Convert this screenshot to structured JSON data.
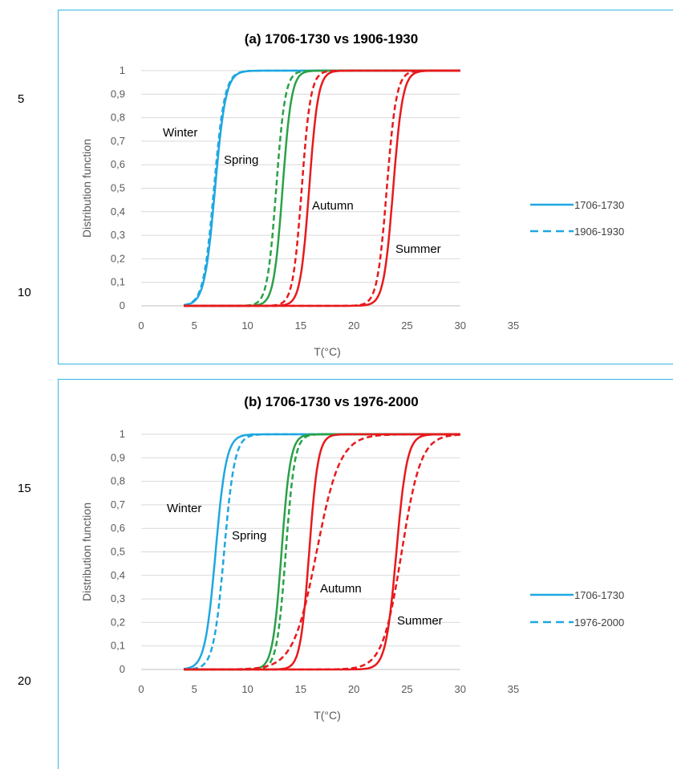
{
  "line_numbers": [
    "5",
    "10",
    "15",
    "20"
  ],
  "chart_data": [
    {
      "type": "line",
      "title": "(a) 1706-1730 vs 1906-1930",
      "xlabel": "T(°C)",
      "ylabel": "Distribution function",
      "xlim": [
        0,
        35
      ],
      "ylim": [
        0,
        1
      ],
      "x_ticks": [
        "0",
        "5",
        "10",
        "15",
        "20",
        "25",
        "30",
        "35"
      ],
      "y_ticks": [
        "0",
        "0,1",
        "0,2",
        "0,3",
        "0,4",
        "0,5",
        "0,6",
        "0,7",
        "0,8",
        "0,9",
        "1"
      ],
      "legend": [
        "1706-1730",
        "1906-1930"
      ],
      "legend_position": "right",
      "grid": true,
      "season_labels": [
        "Winter",
        "Spring",
        "Autumn",
        "Summer"
      ],
      "series": [
        {
          "season": "Winter",
          "period": "1706-1730",
          "style": "solid",
          "color": "#1ea7e1",
          "range": [
            4,
            30
          ],
          "median": 6.95,
          "scale": 0.5
        },
        {
          "season": "Winter",
          "period": "1906-1930",
          "style": "dashed",
          "color": "#1ea7e1",
          "range": [
            4,
            30
          ],
          "median": 6.85,
          "scale": 0.5
        },
        {
          "season": "Spring",
          "period": "1706-1730",
          "style": "solid",
          "color": "#2aa147",
          "range": [
            4,
            30
          ],
          "median": 13.3,
          "scale": 0.42
        },
        {
          "season": "Spring",
          "period": "1906-1930",
          "style": "dashed",
          "color": "#2aa147",
          "range": [
            4,
            30
          ],
          "median": 12.7,
          "scale": 0.42
        },
        {
          "season": "Autumn",
          "period": "1706-1730",
          "style": "solid",
          "color": "#e8191c",
          "range": [
            4,
            30
          ],
          "median": 15.8,
          "scale": 0.42
        },
        {
          "season": "Autumn",
          "period": "1906-1930",
          "style": "dashed",
          "color": "#e8191c",
          "range": [
            4,
            30
          ],
          "median": 15.1,
          "scale": 0.42
        },
        {
          "season": "Summer",
          "period": "1706-1730",
          "style": "solid",
          "color": "#e8191c",
          "range": [
            4,
            30
          ],
          "median": 23.7,
          "scale": 0.45
        },
        {
          "season": "Summer",
          "period": "1906-1930",
          "style": "dashed",
          "color": "#e8191c",
          "range": [
            4,
            30
          ],
          "median": 23.1,
          "scale": 0.45
        }
      ]
    },
    {
      "type": "line",
      "title": "(b) 1706-1730 vs 1976-2000",
      "xlabel": "T(°C)",
      "ylabel": "Distribution function",
      "xlim": [
        0,
        35
      ],
      "ylim": [
        0,
        1
      ],
      "x_ticks": [
        "0",
        "5",
        "10",
        "15",
        "20",
        "25",
        "30",
        "35"
      ],
      "y_ticks": [
        "0",
        "0,1",
        "0,2",
        "0,3",
        "0,4",
        "0,5",
        "0,6",
        "0,7",
        "0,8",
        "0,9",
        "1"
      ],
      "legend": [
        "1706-1730",
        "1976-2000"
      ],
      "legend_position": "right",
      "grid": true,
      "season_labels": [
        "Winter",
        "Spring",
        "Autumn",
        "Summer"
      ],
      "series": [
        {
          "season": "Winter",
          "period": "1706-1730",
          "style": "solid",
          "color": "#1ea7e1",
          "range": [
            4,
            30
          ],
          "median": 7.0,
          "scale": 0.5
        },
        {
          "season": "Winter",
          "period": "1976-2000",
          "style": "dashed",
          "color": "#1ea7e1",
          "range": [
            4,
            30
          ],
          "median": 7.8,
          "scale": 0.5
        },
        {
          "season": "Spring",
          "period": "1706-1730",
          "style": "solid",
          "color": "#2aa147",
          "range": [
            4,
            30
          ],
          "median": 13.2,
          "scale": 0.42
        },
        {
          "season": "Spring",
          "period": "1976-2000",
          "style": "dashed",
          "color": "#2aa147",
          "range": [
            4,
            30
          ],
          "median": 13.6,
          "scale": 0.42
        },
        {
          "season": "Autumn",
          "period": "1706-1730",
          "style": "solid",
          "color": "#e8191c",
          "range": [
            4,
            30
          ],
          "median": 15.8,
          "scale": 0.42
        },
        {
          "season": "Autumn",
          "period": "1976-2000",
          "style": "dashed",
          "color": "#e8191c",
          "range": [
            4,
            30
          ],
          "median": 16.5,
          "scale": 1.1
        },
        {
          "season": "Summer",
          "period": "1706-1730",
          "style": "solid",
          "color": "#e8191c",
          "range": [
            4,
            30
          ],
          "median": 24.0,
          "scale": 0.5
        },
        {
          "season": "Summer",
          "period": "1976-2000",
          "style": "dashed",
          "color": "#e8191c",
          "range": [
            4,
            30
          ],
          "median": 24.5,
          "scale": 0.9
        }
      ]
    }
  ]
}
